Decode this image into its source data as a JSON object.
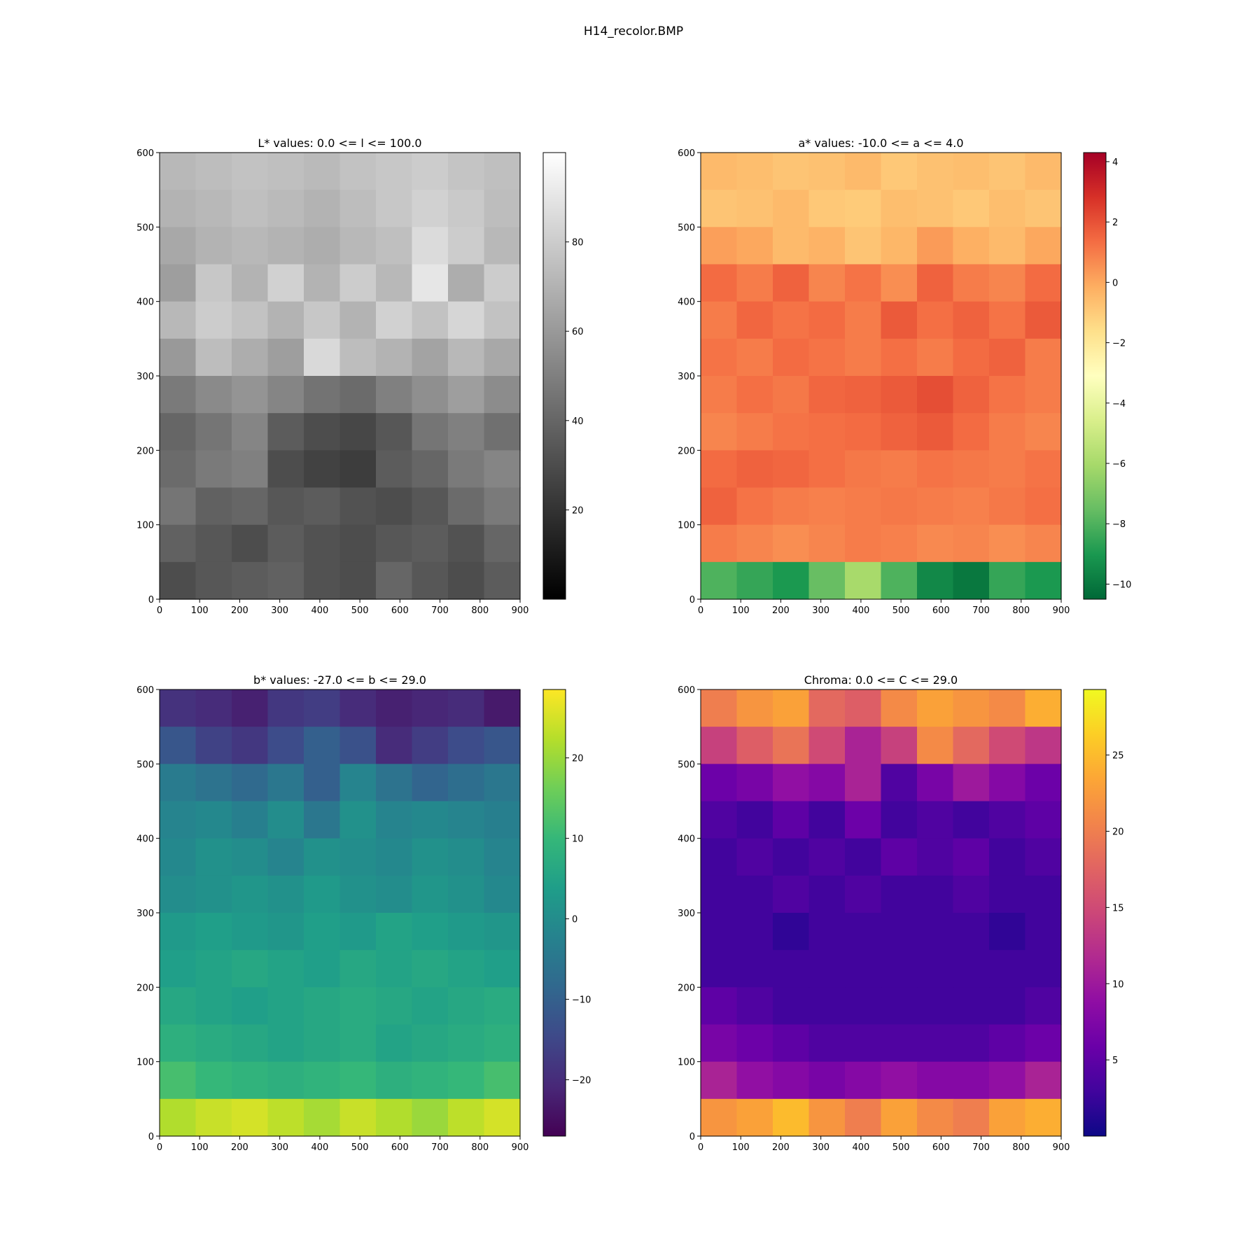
{
  "figure": {
    "title": "H14_recolor.BMP"
  },
  "chart_data": [
    {
      "type": "heatmap",
      "title": "L* values: 0.0 <= l <= 100.0",
      "xlim": [
        0,
        900
      ],
      "ylim": [
        0,
        600
      ],
      "x_ticks": [
        0,
        100,
        200,
        300,
        400,
        500,
        600,
        700,
        800,
        900
      ],
      "y_ticks": [
        0,
        100,
        200,
        300,
        400,
        500,
        600
      ],
      "colorbar": {
        "range": [
          0,
          100
        ],
        "ticks": [
          20,
          40,
          60,
          80
        ],
        "colors": [
          "#000000",
          "#ffffff"
        ]
      },
      "grid": [
        [
          72,
          74,
          76,
          75,
          73,
          76,
          78,
          80,
          77,
          75
        ],
        [
          70,
          72,
          75,
          73,
          70,
          74,
          78,
          82,
          79,
          74
        ],
        [
          66,
          70,
          72,
          70,
          68,
          72,
          75,
          86,
          80,
          72
        ],
        [
          62,
          78,
          70,
          82,
          70,
          80,
          72,
          90,
          68,
          80
        ],
        [
          72,
          80,
          76,
          70,
          78,
          70,
          82,
          76,
          84,
          76
        ],
        [
          60,
          74,
          68,
          62,
          85,
          74,
          70,
          64,
          72,
          66
        ],
        [
          48,
          54,
          58,
          52,
          45,
          42,
          50,
          56,
          62,
          55
        ],
        [
          40,
          46,
          52,
          36,
          30,
          28,
          34,
          46,
          50,
          44
        ],
        [
          42,
          48,
          50,
          30,
          26,
          24,
          36,
          40,
          48,
          52
        ],
        [
          46,
          38,
          40,
          34,
          36,
          32,
          30,
          34,
          42,
          48
        ],
        [
          38,
          34,
          30,
          36,
          32,
          30,
          34,
          36,
          32,
          40
        ],
        [
          30,
          34,
          36,
          38,
          32,
          30,
          40,
          34,
          30,
          36
        ]
      ]
    },
    {
      "type": "heatmap",
      "title": "a* values: -10.0 <= a <= 4.0",
      "xlim": [
        0,
        900
      ],
      "ylim": [
        0,
        600
      ],
      "x_ticks": [
        0,
        100,
        200,
        300,
        400,
        500,
        600,
        700,
        800,
        900
      ],
      "y_ticks": [
        0,
        100,
        200,
        300,
        400,
        500,
        600
      ],
      "colorbar": {
        "range": [
          -10.5,
          4.3
        ],
        "ticks": [
          -10,
          -8,
          -6,
          -4,
          -2,
          0,
          2,
          4
        ],
        "colors": [
          "#006837",
          "#1a9850",
          "#66bd63",
          "#a6d96a",
          "#d9ef8b",
          "#ffffbf",
          "#fee08b",
          "#fdae61",
          "#f46d43",
          "#d73027",
          "#a50026"
        ]
      },
      "grid": [
        [
          -0.5,
          -0.6,
          -0.8,
          -0.7,
          -0.5,
          -0.9,
          -0.7,
          -0.6,
          -0.8,
          -0.5
        ],
        [
          -0.8,
          -0.7,
          -0.5,
          -0.9,
          -1.0,
          -0.6,
          -0.7,
          -0.9,
          -0.6,
          -0.8
        ],
        [
          0.2,
          0.0,
          -0.5,
          -0.3,
          -0.8,
          -0.4,
          0.3,
          -0.2,
          -0.5,
          0.0
        ],
        [
          1.4,
          1.0,
          1.6,
          0.8,
          1.2,
          0.6,
          1.6,
          1.0,
          0.8,
          1.4
        ],
        [
          1.0,
          1.5,
          1.2,
          1.4,
          1.0,
          1.8,
          1.3,
          1.6,
          1.2,
          1.8
        ],
        [
          1.2,
          1.0,
          1.4,
          1.2,
          1.0,
          1.3,
          1.0,
          1.4,
          1.6,
          1.0
        ],
        [
          1.0,
          1.3,
          1.1,
          1.5,
          1.6,
          1.8,
          2.1,
          1.6,
          1.2,
          1.0
        ],
        [
          0.8,
          1.0,
          1.2,
          1.3,
          1.4,
          1.6,
          1.8,
          1.4,
          1.0,
          0.8
        ],
        [
          1.4,
          1.6,
          1.5,
          1.3,
          1.1,
          1.0,
          1.2,
          1.1,
          1.0,
          1.2
        ],
        [
          1.6,
          1.2,
          1.0,
          0.9,
          1.0,
          1.1,
          1.0,
          0.9,
          1.1,
          1.3
        ],
        [
          1.0,
          0.8,
          0.6,
          0.8,
          1.0,
          0.9,
          0.7,
          0.8,
          0.6,
          0.8
        ],
        [
          -8.0,
          -8.5,
          -9.0,
          -7.5,
          -6.0,
          -8.0,
          -9.5,
          -10.0,
          -8.5,
          -9.0
        ]
      ]
    },
    {
      "type": "heatmap",
      "title": "b* values: -27.0 <= b <= 29.0",
      "xlim": [
        0,
        900
      ],
      "ylim": [
        0,
        600
      ],
      "x_ticks": [
        0,
        100,
        200,
        300,
        400,
        500,
        600,
        700,
        800,
        900
      ],
      "y_ticks": [
        0,
        100,
        200,
        300,
        400,
        500,
        600
      ],
      "colorbar": {
        "range": [
          -27,
          28.5
        ],
        "ticks": [
          -20,
          -10,
          0,
          10,
          20
        ],
        "colors": [
          "#440154",
          "#482878",
          "#3e4989",
          "#31688e",
          "#26828e",
          "#1f9e89",
          "#35b779",
          "#6ece58",
          "#b5de2b",
          "#fde725"
        ]
      },
      "grid": [
        [
          -19,
          -20,
          -22,
          -18,
          -17,
          -20,
          -22,
          -21,
          -20,
          -23
        ],
        [
          -12,
          -16,
          -18,
          -14,
          -10,
          -13,
          -20,
          -17,
          -14,
          -12
        ],
        [
          -4,
          -6,
          -8,
          -5,
          -10,
          -2,
          -6,
          -9,
          -7,
          -5
        ],
        [
          -2,
          -1,
          -3,
          0,
          -5,
          1,
          -2,
          -1,
          -2,
          -3
        ],
        [
          -1,
          1,
          0,
          -2,
          1,
          0,
          -1,
          1,
          0,
          -2
        ],
        [
          0,
          1,
          2,
          1,
          3,
          1,
          0,
          2,
          1,
          -1
        ],
        [
          3,
          4,
          3,
          2,
          4,
          3,
          5,
          4,
          3,
          2
        ],
        [
          4,
          5,
          6,
          5,
          4,
          6,
          5,
          6,
          5,
          4
        ],
        [
          6,
          5,
          4,
          5,
          6,
          7,
          6,
          5,
          6,
          7
        ],
        [
          8,
          7,
          6,
          5,
          6,
          7,
          5,
          6,
          7,
          8
        ],
        [
          12,
          10,
          9,
          8,
          9,
          10,
          8,
          9,
          10,
          12
        ],
        [
          22,
          24,
          25,
          23,
          21,
          24,
          22,
          20,
          23,
          25
        ]
      ]
    },
    {
      "type": "heatmap",
      "title": "Chroma: 0.0 <= C <= 29.0",
      "xlim": [
        0,
        900
      ],
      "ylim": [
        0,
        600
      ],
      "x_ticks": [
        0,
        100,
        200,
        300,
        400,
        500,
        600,
        700,
        800,
        900
      ],
      "y_ticks": [
        0,
        100,
        200,
        300,
        400,
        500,
        600
      ],
      "colorbar": {
        "range": [
          0,
          29.3
        ],
        "ticks": [
          5,
          10,
          15,
          20,
          25
        ],
        "colors": [
          "#0d0887",
          "#41049d",
          "#6a00a8",
          "#8f0da4",
          "#b12a90",
          "#cc4778",
          "#e16462",
          "#f2844b",
          "#fca636",
          "#fcce25",
          "#f0f921"
        ]
      },
      "grid": [
        [
          20,
          22,
          23,
          18,
          17,
          21,
          23,
          22,
          21,
          24
        ],
        [
          14,
          17,
          19,
          15,
          11,
          14,
          21,
          18,
          15,
          13
        ],
        [
          6,
          7,
          9,
          8,
          11,
          4,
          7,
          10,
          8,
          6
        ],
        [
          4,
          3,
          5,
          3,
          6,
          3,
          4,
          3,
          4,
          5
        ],
        [
          3,
          4,
          3,
          4,
          3,
          5,
          4,
          5,
          3,
          4
        ],
        [
          3,
          3,
          4,
          3,
          4,
          3,
          3,
          4,
          3,
          3
        ],
        [
          3,
          3,
          2,
          3,
          3,
          3,
          3,
          3,
          2,
          3
        ],
        [
          3,
          3,
          3,
          3,
          3,
          3,
          3,
          3,
          3,
          3
        ],
        [
          5,
          4,
          3,
          3,
          3,
          3,
          3,
          3,
          3,
          4
        ],
        [
          7,
          6,
          5,
          4,
          4,
          4,
          4,
          4,
          5,
          6
        ],
        [
          11,
          9,
          8,
          7,
          8,
          9,
          8,
          8,
          9,
          11
        ],
        [
          22,
          23,
          25,
          22,
          20,
          23,
          21,
          20,
          23,
          24
        ]
      ]
    }
  ]
}
